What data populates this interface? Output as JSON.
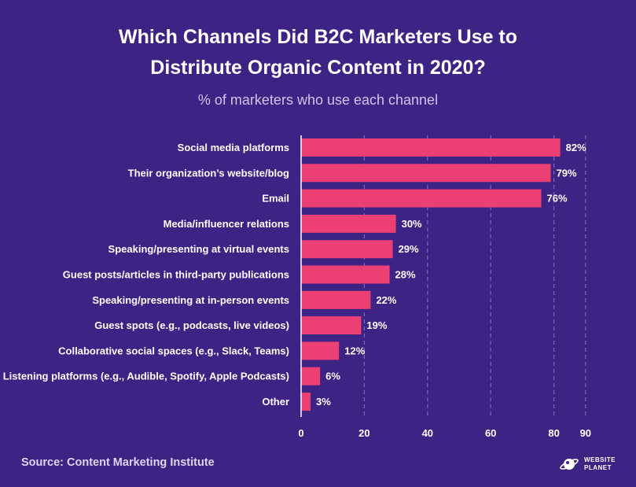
{
  "title_line1": "Which Channels Did B2C Marketers Use to",
  "title_line2": "Distribute Organic Content in 2020?",
  "subtitle": "% of marketers who use each channel",
  "source": "Source: Content Marketing Institute",
  "logo": {
    "line1": "WEBSITE",
    "line2": "PLANET"
  },
  "colors": {
    "background": "#3d2383",
    "bar": "#ec3f74",
    "grid": "#7b68b4"
  },
  "chart_data": {
    "type": "bar",
    "orientation": "horizontal",
    "categories": [
      "Social media platforms",
      "Their organization’s website/blog",
      "Email",
      "Media/influencer relations",
      "Speaking/presenting at virtual events",
      "Guest posts/articles in third-party publications",
      "Speaking/presenting at in-person events",
      "Guest spots (e.g., podcasts, live videos)",
      "Collaborative social spaces (e.g., Slack, Teams)",
      "Listening platforms (e.g., Audible, Spotify, Apple Podcasts)",
      "Other"
    ],
    "values": [
      82,
      79,
      76,
      30,
      29,
      28,
      22,
      19,
      12,
      6,
      3
    ],
    "value_labels": [
      "82%",
      "79%",
      "76%",
      "30%",
      "29%",
      "28%",
      "22%",
      "19%",
      "12%",
      "6%",
      "3%"
    ],
    "xlim": [
      0,
      90
    ],
    "xticks": [
      "0",
      "20",
      "40",
      "60",
      "80",
      "90"
    ],
    "grid": true
  }
}
